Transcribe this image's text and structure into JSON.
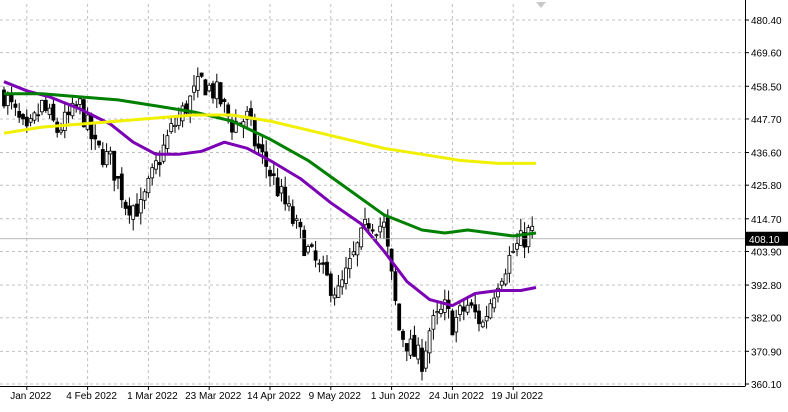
{
  "chart_data": {
    "type": "candlestick",
    "title": "",
    "grid": true,
    "background": "#ffffff",
    "axis_color": "#000000",
    "grid_color": "#c0c0c0",
    "candle_color": "#000000",
    "y_range": [
      360.1,
      480.4
    ],
    "y_ticks": [
      "480.40",
      "469.60",
      "458.50",
      "447.70",
      "436.60",
      "425.80",
      "414.70",
      "403.90",
      "392.80",
      "382.00",
      "370.90",
      "360.10"
    ],
    "x_labels": [
      "Jan 2022",
      "4 Feb 2022",
      "1 Mar 2022",
      "23 Mar 2022",
      "14 Apr 2022",
      "9 May 2022",
      "1 Jun 2022",
      "24 Jun 2022",
      "19 Jul 2022"
    ],
    "x_label_bars": [
      6,
      22,
      38,
      54,
      70,
      86,
      102,
      118,
      134
    ],
    "bar_count": 140,
    "last_price": "408.10",
    "last_price_value": 408.1,
    "close_keypoints": [
      [
        0,
        456
      ],
      [
        6,
        442
      ],
      [
        10,
        452
      ],
      [
        14,
        444
      ],
      [
        20,
        452
      ],
      [
        24,
        438
      ],
      [
        28,
        434
      ],
      [
        32,
        420
      ],
      [
        36,
        418
      ],
      [
        40,
        432
      ],
      [
        44,
        444
      ],
      [
        48,
        452
      ],
      [
        52,
        460
      ],
      [
        56,
        456
      ],
      [
        60,
        446
      ],
      [
        64,
        448
      ],
      [
        66,
        440
      ],
      [
        70,
        430
      ],
      [
        76,
        414
      ],
      [
        80,
        404
      ],
      [
        84,
        396
      ],
      [
        88,
        390
      ],
      [
        90,
        396
      ],
      [
        96,
        414
      ],
      [
        100,
        412
      ],
      [
        104,
        378
      ],
      [
        108,
        370
      ],
      [
        110,
        368
      ],
      [
        112,
        378
      ],
      [
        116,
        385
      ],
      [
        118,
        380
      ],
      [
        122,
        386
      ],
      [
        126,
        380
      ],
      [
        130,
        395
      ],
      [
        134,
        404
      ],
      [
        138,
        410
      ],
      [
        140,
        410
      ]
    ],
    "series": [
      {
        "name": "",
        "color": "#7c00b4",
        "width": 3,
        "values": [
          [
            0,
            460
          ],
          [
            6,
            457
          ],
          [
            12,
            455
          ],
          [
            20,
            451
          ],
          [
            28,
            446
          ],
          [
            34,
            440
          ],
          [
            40,
            436
          ],
          [
            46,
            436
          ],
          [
            52,
            437
          ],
          [
            58,
            440
          ],
          [
            64,
            438
          ],
          [
            70,
            434
          ],
          [
            78,
            428
          ],
          [
            86,
            420
          ],
          [
            94,
            413
          ],
          [
            100,
            404
          ],
          [
            106,
            394
          ],
          [
            112,
            388
          ],
          [
            118,
            386
          ],
          [
            124,
            390
          ],
          [
            130,
            391
          ],
          [
            136,
            391
          ],
          [
            140,
            392
          ]
        ]
      },
      {
        "name": "",
        "color": "#008000",
        "width": 3,
        "values": [
          [
            0,
            456
          ],
          [
            10,
            456
          ],
          [
            20,
            455
          ],
          [
            30,
            454
          ],
          [
            40,
            452
          ],
          [
            50,
            450
          ],
          [
            60,
            447
          ],
          [
            70,
            441
          ],
          [
            80,
            434
          ],
          [
            90,
            425
          ],
          [
            100,
            416
          ],
          [
            106,
            413
          ],
          [
            110,
            411
          ],
          [
            116,
            410
          ],
          [
            122,
            411
          ],
          [
            128,
            410
          ],
          [
            134,
            409
          ],
          [
            140,
            410
          ]
        ]
      },
      {
        "name": "",
        "color": "#f0f000",
        "width": 3,
        "values": [
          [
            0,
            443
          ],
          [
            10,
            445
          ],
          [
            20,
            446
          ],
          [
            30,
            447
          ],
          [
            40,
            448
          ],
          [
            50,
            449
          ],
          [
            60,
            449
          ],
          [
            70,
            447
          ],
          [
            80,
            444
          ],
          [
            90,
            441
          ],
          [
            100,
            438
          ],
          [
            110,
            436
          ],
          [
            120,
            434
          ],
          [
            130,
            433
          ],
          [
            140,
            433
          ]
        ]
      }
    ]
  }
}
